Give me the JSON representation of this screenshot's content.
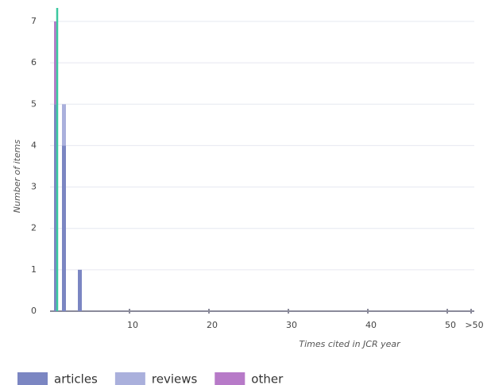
{
  "chart_data": {
    "type": "stacked-bar",
    "x": [
      1,
      2,
      4
    ],
    "series": [
      {
        "name": "articles",
        "color": "#7b86c2",
        "values": [
          5,
          4,
          1
        ]
      },
      {
        "name": "reviews",
        "color": "#aab0dc",
        "values": [
          0,
          1,
          0
        ]
      },
      {
        "name": "other",
        "color": "#b77ac8",
        "values": [
          2,
          0,
          0
        ]
      }
    ],
    "reference_line": {
      "x": 0.9,
      "color": "#3cc8a0"
    },
    "xlabel": "Times cited in JCR year",
    "ylabel": "Number of items",
    "xlim": [
      0,
      53
    ],
    "xticks": [
      10,
      20,
      30,
      40,
      50,
      {
        "value": 53,
        "label": ">50"
      }
    ],
    "ylim": [
      0,
      7
    ],
    "yticks": [
      0,
      1,
      2,
      3,
      4,
      5,
      6,
      7
    ],
    "grid": true,
    "legend": "bottom"
  }
}
